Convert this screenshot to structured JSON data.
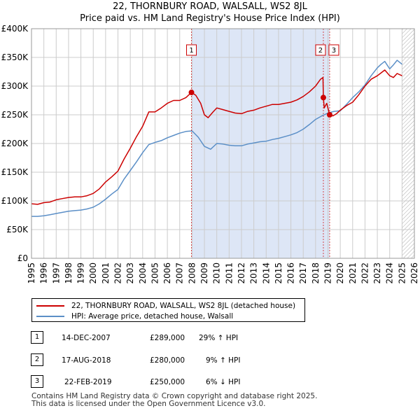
{
  "title_line1": "22, THORNBURY ROAD, WALSALL, WS2 8JL",
  "title_line2": "Price paid vs. HM Land Registry's House Price Index (HPI)",
  "legend": {
    "red_label": "22, THORNBURY ROAD, WALSALL, WS2 8JL (detached house)",
    "blue_label": "HPI: Average price, detached house, Walsall"
  },
  "colors": {
    "red": "#cc0000",
    "blue": "#5b8fc7",
    "shade": "#dde6f6",
    "grid": "#cccccc"
  },
  "sales": [
    {
      "num": "1",
      "date": "14-DEC-2007",
      "price": "£289,000",
      "pct": "29% ↑ HPI"
    },
    {
      "num": "2",
      "date": "17-AUG-2018",
      "price": "£280,000",
      "pct": "9% ↑ HPI"
    },
    {
      "num": "3",
      "date": "22-FEB-2019",
      "price": "£250,000",
      "pct": "6% ↓ HPI"
    }
  ],
  "footer": {
    "line1": "Contains HM Land Registry data © Crown copyright and database right 2025.",
    "line2": "This data is licensed under the Open Government Licence v3.0."
  },
  "chart_data": {
    "type": "line",
    "title": "22, THORNBURY ROAD, WALSALL, WS2 8JL — Price paid vs. HM Land Registry's House Price Index (HPI)",
    "xlabel": "",
    "ylabel": "",
    "xlim": [
      1995,
      2026
    ],
    "ylim": [
      0,
      400000
    ],
    "x_ticks": [
      "1995",
      "1996",
      "1997",
      "1998",
      "1999",
      "2000",
      "2001",
      "2002",
      "2003",
      "2004",
      "2005",
      "2006",
      "2007",
      "2008",
      "2009",
      "2010",
      "2011",
      "2012",
      "2013",
      "2014",
      "2015",
      "2016",
      "2017",
      "2018",
      "2019",
      "2020",
      "2021",
      "2022",
      "2023",
      "2024",
      "2025",
      "2026"
    ],
    "y_ticks": [
      {
        "value": 0,
        "label": "£0"
      },
      {
        "value": 50000,
        "label": "£50K"
      },
      {
        "value": 100000,
        "label": "£100K"
      },
      {
        "value": 150000,
        "label": "£150K"
      },
      {
        "value": 200000,
        "label": "£200K"
      },
      {
        "value": 250000,
        "label": "£250K"
      },
      {
        "value": 300000,
        "label": "£300K"
      },
      {
        "value": 350000,
        "label": "£350K"
      },
      {
        "value": 400000,
        "label": "£400K"
      }
    ],
    "shaded_region": [
      2007.95,
      2019.14
    ],
    "hatched_after": 2025.0,
    "markers": [
      {
        "label": "1",
        "x": 2007.95,
        "y": 289000
      },
      {
        "label": "2",
        "x": 2018.63,
        "y": 280000
      },
      {
        "label": "3",
        "x": 2019.14,
        "y": 250000
      }
    ],
    "series": [
      {
        "name": "22, THORNBURY ROAD, WALSALL, WS2 8JL (detached house)",
        "color": "#cc0000",
        "x": [
          1995.0,
          1995.5,
          1996.0,
          1996.5,
          1997.0,
          1997.5,
          1998.0,
          1998.5,
          1999.0,
          1999.5,
          2000.0,
          2000.5,
          2001.0,
          2001.5,
          2002.0,
          2002.5,
          2003.0,
          2003.5,
          2004.0,
          2004.5,
          2005.0,
          2005.5,
          2006.0,
          2006.5,
          2007.0,
          2007.5,
          2007.95,
          2008.3,
          2008.7,
          2009.0,
          2009.3,
          2009.7,
          2010.0,
          2010.5,
          2011.0,
          2011.5,
          2012.0,
          2012.5,
          2013.0,
          2013.5,
          2014.0,
          2014.5,
          2015.0,
          2015.5,
          2016.0,
          2016.5,
          2017.0,
          2017.5,
          2018.0,
          2018.4,
          2018.6,
          2018.63,
          2018.7,
          2018.9,
          2019.14,
          2019.4,
          2019.7,
          2020.0,
          2020.5,
          2021.0,
          2021.5,
          2022.0,
          2022.5,
          2023.0,
          2023.3,
          2023.6,
          2024.0,
          2024.3,
          2024.6,
          2025.0
        ],
        "values": [
          95000,
          94000,
          97000,
          98000,
          102000,
          104000,
          106000,
          107000,
          107000,
          109000,
          113000,
          121000,
          133000,
          142000,
          152000,
          173000,
          192000,
          212000,
          230000,
          255000,
          255000,
          262000,
          270000,
          275000,
          275000,
          280000,
          289000,
          284000,
          270000,
          250000,
          245000,
          255000,
          262000,
          259000,
          256000,
          253000,
          252000,
          256000,
          258000,
          262000,
          265000,
          268000,
          268000,
          270000,
          272000,
          276000,
          282000,
          290000,
          300000,
          312000,
          315000,
          280000,
          262000,
          270000,
          250000,
          248000,
          252000,
          258000,
          266000,
          272000,
          285000,
          300000,
          312000,
          318000,
          323000,
          328000,
          318000,
          315000,
          322000,
          318000
        ]
      },
      {
        "name": "HPI: Average price, detached house, Walsall",
        "color": "#5b8fc7",
        "x": [
          1995.0,
          1995.5,
          1996.0,
          1996.5,
          1997.0,
          1997.5,
          1998.0,
          1998.5,
          1999.0,
          1999.5,
          2000.0,
          2000.5,
          2001.0,
          2001.5,
          2002.0,
          2002.5,
          2003.0,
          2003.5,
          2004.0,
          2004.5,
          2005.0,
          2005.5,
          2006.0,
          2006.5,
          2007.0,
          2007.5,
          2008.0,
          2008.5,
          2009.0,
          2009.5,
          2010.0,
          2010.5,
          2011.0,
          2011.5,
          2012.0,
          2012.5,
          2013.0,
          2013.5,
          2014.0,
          2014.5,
          2015.0,
          2015.5,
          2016.0,
          2016.5,
          2017.0,
          2017.5,
          2018.0,
          2018.5,
          2019.0,
          2019.5,
          2020.0,
          2020.5,
          2021.0,
          2021.5,
          2022.0,
          2022.5,
          2023.0,
          2023.3,
          2023.6,
          2024.0,
          2024.3,
          2024.6,
          2025.0
        ],
        "values": [
          73000,
          73000,
          74000,
          76000,
          78000,
          80000,
          82000,
          83000,
          84000,
          86000,
          89000,
          95000,
          103000,
          112000,
          120000,
          138000,
          153000,
          168000,
          184000,
          198000,
          202000,
          205000,
          210000,
          214000,
          218000,
          221000,
          222000,
          211000,
          195000,
          190000,
          200000,
          199000,
          197000,
          196000,
          196000,
          199000,
          201000,
          203000,
          204000,
          207000,
          209000,
          212000,
          215000,
          219000,
          225000,
          233000,
          242000,
          248000,
          253000,
          256000,
          257000,
          268000,
          280000,
          290000,
          302000,
          318000,
          332000,
          338000,
          343000,
          330000,
          337000,
          345000,
          338000
        ]
      }
    ]
  }
}
